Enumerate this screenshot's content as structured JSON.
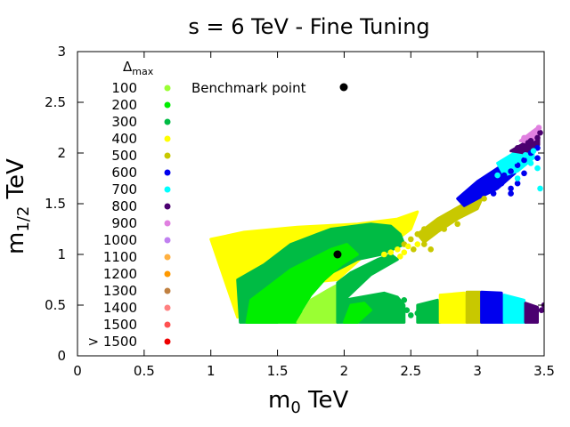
{
  "chart_data": {
    "type": "scatter",
    "title": "s = 6 TeV - Fine Tuning",
    "xlabel": "m",
    "xlabel_sub": "0",
    "xlabel_unit": " TeV",
    "ylabel": "m",
    "ylabel_sub": "1/2",
    "ylabel_unit": " TeV",
    "xlim": [
      0,
      3.5
    ],
    "ylim": [
      0,
      3
    ],
    "xticks": [
      0,
      0.5,
      1,
      1.5,
      2,
      2.5,
      3,
      3.5
    ],
    "xtick_labels": [
      "0",
      "0.5",
      "1",
      "1.5",
      "2",
      "2.5",
      "3",
      "3.5"
    ],
    "yticks": [
      0,
      0.5,
      1,
      1.5,
      2,
      2.5,
      3
    ],
    "ytick_labels": [
      "0",
      "0.5",
      "1",
      "1.5",
      "2",
      "2.5",
      "3"
    ],
    "legend": {
      "title": "Δ",
      "title_sub": "max",
      "placement": "top-left",
      "entries": [
        {
          "label": "100",
          "color": "#9aff33"
        },
        {
          "label": "200",
          "color": "#00ee00"
        },
        {
          "label": "300",
          "color": "#00bb44"
        },
        {
          "label": "400",
          "color": "#ffff00"
        },
        {
          "label": "500",
          "color": "#c8c800"
        },
        {
          "label": "600",
          "color": "#0000ee"
        },
        {
          "label": "700",
          "color": "#00ffff"
        },
        {
          "label": "800",
          "color": "#4b0070"
        },
        {
          "label": "900",
          "color": "#e080e0"
        },
        {
          "label": "1000",
          "color": "#c080f0"
        },
        {
          "label": "1100",
          "color": "#ffb040"
        },
        {
          "label": "1200",
          "color": "#ff9900"
        },
        {
          "label": "1300",
          "color": "#c08040"
        },
        {
          "label": "1400",
          "color": "#ff8080"
        },
        {
          "label": "1500",
          "color": "#ff5050"
        },
        {
          "label": "> 1500",
          "color": "#ee0000"
        }
      ]
    },
    "benchmark": {
      "label": "Benchmark point",
      "x": 1.95,
      "y": 1.0,
      "color": "#000000"
    },
    "regions": [
      {
        "name": "upper-band-400",
        "color": "#ffff00",
        "points": [
          [
            1.0,
            1.15
          ],
          [
            1.25,
            1.22
          ],
          [
            1.65,
            1.27
          ],
          [
            2.1,
            1.3
          ],
          [
            2.4,
            1.35
          ],
          [
            2.55,
            1.42
          ],
          [
            2.5,
            1.25
          ],
          [
            2.4,
            1.15
          ],
          [
            2.2,
            1.05
          ],
          [
            1.95,
            0.75
          ],
          [
            1.55,
            0.7
          ],
          [
            1.25,
            0.5
          ],
          [
            1.2,
            0.38
          ]
        ]
      },
      {
        "name": "central-300",
        "color": "#00bb44",
        "points": [
          [
            1.22,
            0.33
          ],
          [
            1.2,
            0.75
          ],
          [
            1.4,
            0.9
          ],
          [
            1.6,
            1.1
          ],
          [
            1.8,
            1.2
          ],
          [
            1.9,
            1.25
          ],
          [
            2.2,
            1.3
          ],
          [
            2.35,
            1.28
          ],
          [
            2.42,
            1.2
          ],
          [
            2.45,
            1.1
          ],
          [
            2.28,
            1.0
          ],
          [
            2.1,
            0.95
          ],
          [
            1.95,
            0.85
          ],
          [
            1.8,
            0.75
          ],
          [
            1.65,
            0.55
          ],
          [
            1.55,
            0.4
          ],
          [
            1.5,
            0.33
          ]
        ]
      },
      {
        "name": "central-200",
        "color": "#00ee00",
        "points": [
          [
            1.27,
            0.33
          ],
          [
            1.3,
            0.55
          ],
          [
            1.45,
            0.7
          ],
          [
            1.6,
            0.85
          ],
          [
            1.75,
            0.95
          ],
          [
            1.9,
            1.05
          ],
          [
            2.02,
            1.1
          ],
          [
            2.1,
            1.0
          ],
          [
            1.98,
            0.9
          ],
          [
            1.85,
            0.75
          ],
          [
            1.75,
            0.6
          ],
          [
            1.68,
            0.45
          ],
          [
            1.65,
            0.33
          ]
        ]
      },
      {
        "name": "central-100",
        "color": "#9aff33",
        "points": [
          [
            1.65,
            0.33
          ],
          [
            1.75,
            0.55
          ],
          [
            1.88,
            0.65
          ],
          [
            1.95,
            0.7
          ],
          [
            1.97,
            0.5
          ],
          [
            1.95,
            0.33
          ]
        ]
      },
      {
        "name": "wedge-300",
        "color": "#00bb44",
        "points": [
          [
            1.95,
            0.33
          ],
          [
            1.95,
            0.72
          ],
          [
            2.05,
            0.82
          ],
          [
            2.25,
            0.95
          ],
          [
            2.35,
            1.0
          ],
          [
            2.4,
            0.95
          ],
          [
            2.2,
            0.8
          ],
          [
            2.0,
            0.55
          ],
          [
            2.3,
            0.62
          ],
          [
            2.4,
            0.58
          ],
          [
            2.45,
            0.5
          ],
          [
            2.45,
            0.33
          ]
        ]
      },
      {
        "name": "wedge-200",
        "color": "#00ee00",
        "points": [
          [
            2.0,
            0.33
          ],
          [
            2.05,
            0.5
          ],
          [
            2.15,
            0.52
          ],
          [
            2.2,
            0.45
          ],
          [
            2.1,
            0.33
          ]
        ]
      },
      {
        "name": "lower-strip-300",
        "color": "#00bb44",
        "points": [
          [
            2.55,
            0.33
          ],
          [
            2.55,
            0.5
          ],
          [
            2.7,
            0.55
          ],
          [
            2.72,
            0.33
          ]
        ]
      },
      {
        "name": "lower-strip-400",
        "color": "#ffff00",
        "points": [
          [
            2.72,
            0.33
          ],
          [
            2.72,
            0.6
          ],
          [
            2.9,
            0.62
          ],
          [
            2.92,
            0.33
          ]
        ]
      },
      {
        "name": "lower-strip-500",
        "color": "#c8c800",
        "points": [
          [
            2.92,
            0.33
          ],
          [
            2.92,
            0.63
          ],
          [
            3.02,
            0.63
          ],
          [
            3.03,
            0.33
          ]
        ]
      },
      {
        "name": "lower-strip-600",
        "color": "#0000ee",
        "points": [
          [
            3.03,
            0.33
          ],
          [
            3.03,
            0.63
          ],
          [
            3.18,
            0.62
          ],
          [
            3.2,
            0.33
          ]
        ]
      },
      {
        "name": "lower-strip-700",
        "color": "#00ffff",
        "points": [
          [
            3.2,
            0.33
          ],
          [
            3.2,
            0.6
          ],
          [
            3.35,
            0.55
          ],
          [
            3.36,
            0.33
          ]
        ]
      },
      {
        "name": "lower-strip-800",
        "color": "#4b0070",
        "points": [
          [
            3.36,
            0.33
          ],
          [
            3.36,
            0.52
          ],
          [
            3.45,
            0.48
          ],
          [
            3.45,
            0.33
          ]
        ]
      },
      {
        "name": "diag-band-500",
        "color": "#c8c800",
        "points": [
          [
            2.55,
            1.2
          ],
          [
            2.7,
            1.35
          ],
          [
            2.9,
            1.5
          ],
          [
            3.05,
            1.6
          ],
          [
            3.0,
            1.45
          ],
          [
            2.85,
            1.35
          ],
          [
            2.7,
            1.22
          ],
          [
            2.6,
            1.12
          ]
        ]
      },
      {
        "name": "diag-band-600",
        "color": "#0000ee",
        "points": [
          [
            2.85,
            1.55
          ],
          [
            3.0,
            1.72
          ],
          [
            3.15,
            1.85
          ],
          [
            3.3,
            1.95
          ],
          [
            3.28,
            1.8
          ],
          [
            3.15,
            1.65
          ],
          [
            3.0,
            1.55
          ],
          [
            2.9,
            1.48
          ]
        ]
      },
      {
        "name": "diag-band-700",
        "color": "#00ffff",
        "points": [
          [
            3.15,
            1.9
          ],
          [
            3.3,
            2.02
          ],
          [
            3.42,
            2.1
          ],
          [
            3.42,
            1.95
          ],
          [
            3.3,
            1.82
          ],
          [
            3.2,
            1.78
          ]
        ]
      },
      {
        "name": "diag-band-800",
        "color": "#4b0070",
        "points": [
          [
            3.25,
            2.02
          ],
          [
            3.38,
            2.12
          ],
          [
            3.46,
            2.18
          ],
          [
            3.46,
            2.08
          ],
          [
            3.35,
            2.0
          ]
        ]
      },
      {
        "name": "diag-band-900",
        "color": "#e080e0",
        "points": [
          [
            3.32,
            2.12
          ],
          [
            3.42,
            2.22
          ],
          [
            3.46,
            2.26
          ],
          [
            3.46,
            2.16
          ],
          [
            3.38,
            2.1
          ]
        ]
      }
    ],
    "scatter_series": [
      {
        "name": "500",
        "color": "#c8c800",
        "points": [
          [
            2.45,
            1.1
          ],
          [
            2.5,
            1.15
          ],
          [
            2.55,
            1.2
          ],
          [
            2.6,
            1.25
          ],
          [
            2.52,
            1.05
          ],
          [
            2.6,
            1.1
          ],
          [
            2.65,
            1.2
          ],
          [
            2.7,
            1.28
          ],
          [
            2.75,
            1.32
          ],
          [
            2.8,
            1.35
          ],
          [
            2.85,
            1.38
          ],
          [
            2.9,
            1.42
          ],
          [
            2.95,
            1.45
          ],
          [
            3.0,
            1.5
          ],
          [
            3.05,
            1.55
          ],
          [
            2.65,
            1.05
          ],
          [
            2.75,
            1.25
          ],
          [
            2.85,
            1.3
          ]
        ]
      },
      {
        "name": "400",
        "color": "#ffff00",
        "points": [
          [
            2.3,
            1.0
          ],
          [
            2.35,
            1.02
          ],
          [
            2.4,
            1.05
          ],
          [
            2.45,
            1.02
          ],
          [
            2.48,
            1.08
          ],
          [
            2.55,
            1.1
          ],
          [
            2.42,
            0.98
          ]
        ]
      },
      {
        "name": "600",
        "color": "#0000ee",
        "points": [
          [
            3.1,
            1.65
          ],
          [
            3.15,
            1.72
          ],
          [
            3.2,
            1.78
          ],
          [
            3.25,
            1.82
          ],
          [
            3.3,
            1.88
          ],
          [
            3.35,
            1.93
          ],
          [
            3.0,
            1.6
          ],
          [
            3.05,
            1.68
          ],
          [
            3.12,
            1.6
          ],
          [
            3.25,
            1.65
          ],
          [
            3.18,
            1.7
          ],
          [
            3.3,
            1.7
          ],
          [
            3.35,
            1.8
          ],
          [
            3.45,
            1.95
          ],
          [
            3.4,
            2.0
          ],
          [
            3.45,
            2.05
          ],
          [
            3.25,
            1.6
          ]
        ]
      },
      {
        "name": "700",
        "color": "#00ffff",
        "points": [
          [
            3.2,
            1.85
          ],
          [
            3.28,
            1.92
          ],
          [
            3.36,
            1.98
          ],
          [
            3.42,
            2.02
          ],
          [
            3.15,
            1.78
          ],
          [
            3.3,
            1.75
          ],
          [
            3.47,
            1.65
          ],
          [
            3.4,
            1.9
          ],
          [
            3.45,
            1.85
          ]
        ]
      },
      {
        "name": "800",
        "color": "#4b0070",
        "points": [
          [
            3.3,
            2.05
          ],
          [
            3.38,
            2.1
          ],
          [
            3.45,
            2.15
          ],
          [
            3.4,
            2.12
          ],
          [
            3.47,
            2.2
          ],
          [
            3.48,
            0.45
          ],
          [
            3.5,
            0.5
          ]
        ]
      },
      {
        "name": "900",
        "color": "#e080e0",
        "points": [
          [
            3.35,
            2.15
          ],
          [
            3.42,
            2.2
          ],
          [
            3.46,
            2.25
          ],
          [
            3.4,
            2.18
          ]
        ]
      },
      {
        "name": "300",
        "color": "#00bb44",
        "points": [
          [
            2.5,
            0.4
          ],
          [
            2.55,
            0.42
          ],
          [
            2.47,
            0.45
          ],
          [
            2.4,
            0.5
          ],
          [
            2.45,
            0.55
          ]
        ]
      }
    ]
  }
}
